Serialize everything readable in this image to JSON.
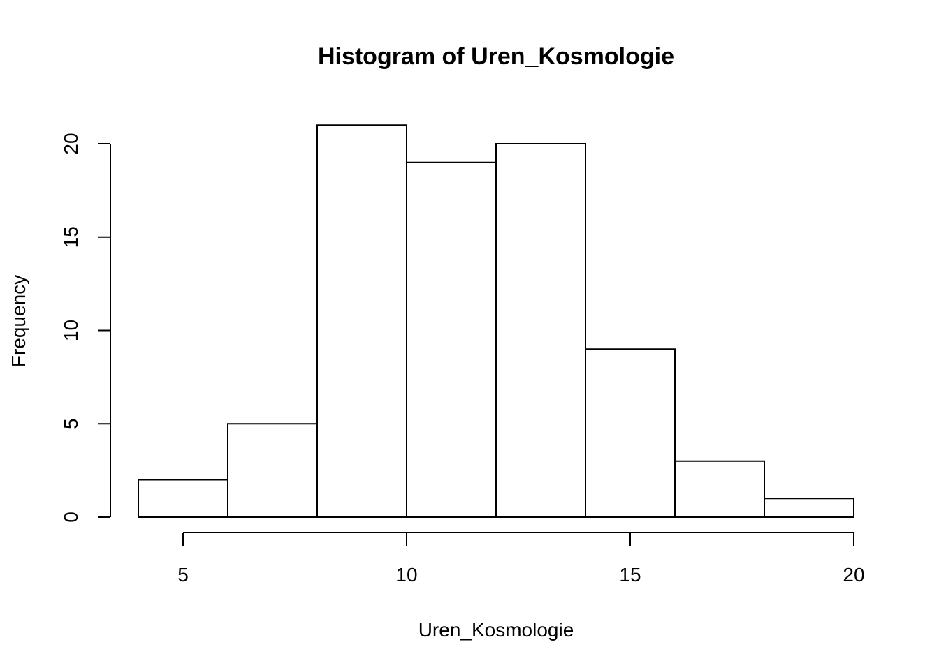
{
  "chart_data": {
    "type": "bar",
    "subtype": "histogram",
    "title": "Histogram of Uren_Kosmologie",
    "xlabel": "Uren_Kosmologie",
    "ylabel": "Frequency",
    "bins": [
      {
        "from": 4,
        "to": 6,
        "count": 2
      },
      {
        "from": 6,
        "to": 8,
        "count": 5
      },
      {
        "from": 8,
        "to": 10,
        "count": 21
      },
      {
        "from": 10,
        "to": 12,
        "count": 19
      },
      {
        "from": 12,
        "to": 14,
        "count": 20
      },
      {
        "from": 14,
        "to": 16,
        "count": 9
      },
      {
        "from": 16,
        "to": 18,
        "count": 3
      },
      {
        "from": 18,
        "to": 20,
        "count": 1
      }
    ],
    "xticks": [
      "5",
      "10",
      "15",
      "20"
    ],
    "yticks": [
      "0",
      "5",
      "10",
      "15",
      "20"
    ],
    "xlim": [
      5,
      20
    ],
    "ylim": [
      0,
      20
    ],
    "grid": false,
    "legend": "none",
    "bar_fill": "#ffffff",
    "bar_stroke": "#000000"
  }
}
